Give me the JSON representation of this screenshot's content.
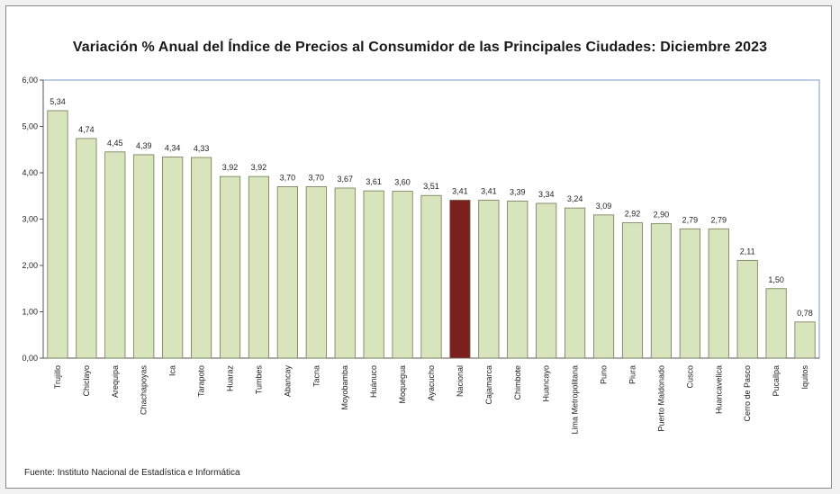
{
  "chart_data": {
    "type": "bar",
    "title": "Variación % Anual del Índice de Precios al Consumidor de las Principales Ciudades: Diciembre 2023",
    "xlabel": "",
    "ylabel": "",
    "ylim": [
      0,
      6
    ],
    "yticks": [
      "0,00",
      "1,00",
      "2,00",
      "3,00",
      "4,00",
      "5,00",
      "6,00"
    ],
    "categories": [
      "Trujillo",
      "Chiclayo",
      "Arequipa",
      "Chachapoyas",
      "Ica",
      "Tarapoto",
      "Huaraz",
      "Tumbes",
      "Abancay",
      "Tacna",
      "Moyobamba",
      "Huánuco",
      "Moquegua",
      "Ayacucho",
      "Nacional",
      "Cajamarca",
      "Chimbote",
      "Huancayo",
      "Lima Metropolitana",
      "Puno",
      "Piura",
      "Puerto Maldonado",
      "Cusco",
      "Huancavelica",
      "Cerro de Pasco",
      "Pucallpa",
      "Iquitos"
    ],
    "values": [
      5.34,
      4.74,
      4.45,
      4.39,
      4.34,
      4.33,
      3.92,
      3.92,
      3.7,
      3.7,
      3.67,
      3.61,
      3.6,
      3.51,
      3.41,
      3.41,
      3.39,
      3.34,
      3.24,
      3.09,
      2.92,
      2.9,
      2.79,
      2.79,
      2.11,
      1.5,
      0.78
    ],
    "value_labels": [
      "5,34",
      "4,74",
      "4,45",
      "4,39",
      "4,34",
      "4,33",
      "3,92",
      "3,92",
      "3,70",
      "3,70",
      "3,67",
      "3,61",
      "3,60",
      "3,51",
      "3,41",
      "3,41",
      "3,39",
      "3,34",
      "3,24",
      "3,09",
      "2,92",
      "2,90",
      "2,79",
      "2,79",
      "2,11",
      "1,50",
      "0,78"
    ],
    "highlight_category": "Nacional",
    "colors": {
      "bar": "#d8e4bc",
      "bar_border": "#6f7a55",
      "highlight": "#7b1f1f",
      "plot_border": "#7f9bc6"
    },
    "grid": false,
    "legend": "none"
  },
  "source_text": "Fuente: Instituto Nacional de Estadística e Informática"
}
